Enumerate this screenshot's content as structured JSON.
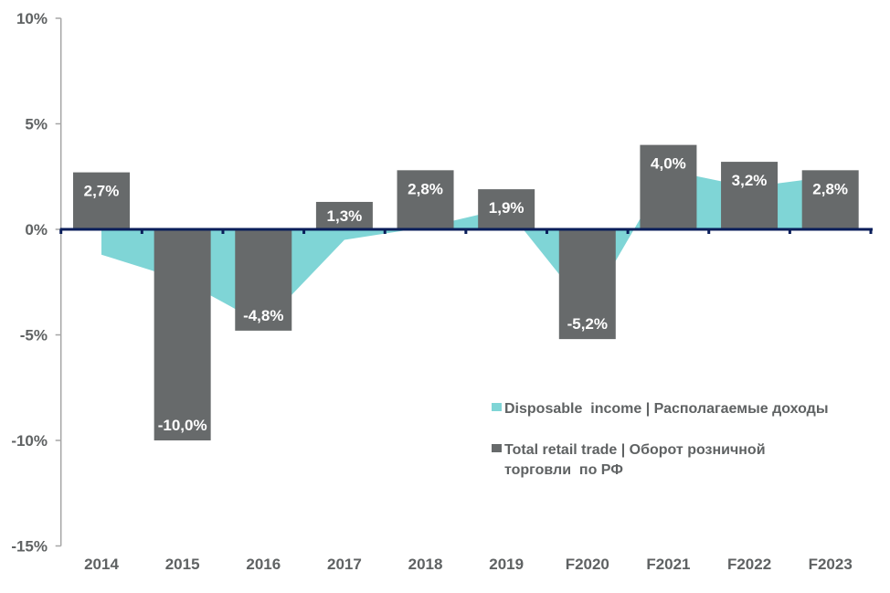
{
  "chart_data": {
    "type": "bar",
    "title": "",
    "xlabel": "",
    "ylabel": "",
    "categories": [
      "2014",
      "2015",
      "2016",
      "2017",
      "2018",
      "2019",
      "F2020",
      "F2021",
      "F2022",
      "F2023"
    ],
    "series": [
      {
        "name": "Disposable income | Располагаемые доходы",
        "type": "area",
        "color": "#7fd5d6",
        "values": [
          -1.2,
          -2.4,
          -4.5,
          -0.5,
          0.1,
          1.0,
          -3.8,
          2.8,
          2.0,
          2.5
        ]
      },
      {
        "name": "Total retail trade | Оборот розничной торговли по РФ",
        "type": "bar",
        "color": "#676a6b",
        "values": [
          2.7,
          -10.0,
          -4.8,
          1.3,
          2.8,
          1.9,
          -5.2,
          4.0,
          3.2,
          2.8
        ],
        "labels": [
          "2,7%",
          "-10,0%",
          "-4,8%",
          "1,3%",
          "2,8%",
          "1,9%",
          "-5,2%",
          "4,0%",
          "3,2%",
          "2,8%"
        ]
      }
    ],
    "y_unit": "%",
    "ylim": [
      -15,
      10
    ],
    "ytick_values": [
      10,
      5,
      0,
      -5,
      -10,
      -15
    ],
    "yticks": [
      "10%",
      "5%",
      "0%",
      "-5%",
      "-10%",
      "-15%"
    ],
    "grid": false,
    "legend_position": "lower-right",
    "legend": [
      {
        "lines": [
          "Disposable  income | Располагаемые доходы"
        ],
        "color": "#7fd5d6"
      },
      {
        "lines": [
          "Total retail trade | Оборот розничной",
          "торговли  по РФ"
        ],
        "color": "#676a6b"
      }
    ],
    "colors": {
      "zero_axis": "#0a1e5a",
      "value_axis": "#a6a6a6",
      "text": "#5f6263",
      "bar_label": "#ffffff"
    }
  }
}
